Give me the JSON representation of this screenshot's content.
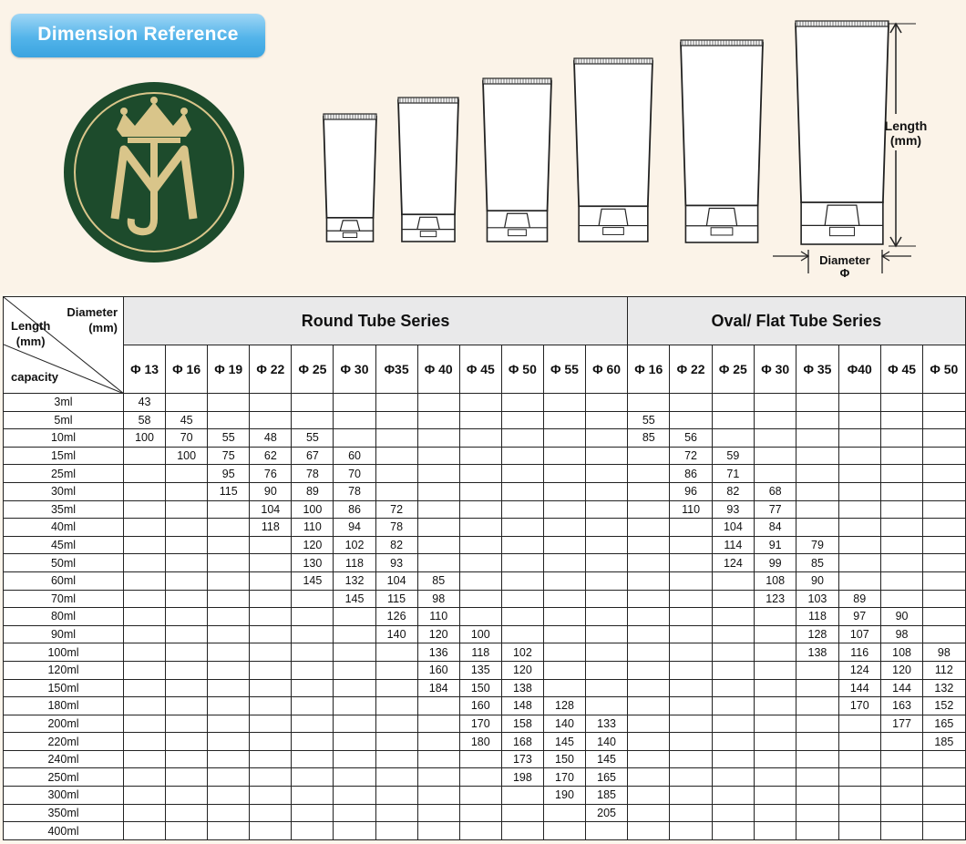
{
  "header": {
    "badge": "Dimension Reference",
    "length_label": [
      "Length",
      "(mm)"
    ],
    "diameter_label": [
      "Diameter",
      "Φ"
    ]
  },
  "colors": {
    "badge": "#4fb2e8",
    "logo_green": "#1d4b2c",
    "logo_gold": "#d9c58a",
    "series_header": "#e9e9ea"
  },
  "logo": {
    "monogram": "MJ"
  },
  "table": {
    "corner": {
      "diameter": [
        "Diameter",
        "(mm)"
      ],
      "length": [
        "Length",
        "(mm)"
      ],
      "capacity": "capacity"
    },
    "series": [
      {
        "name": "Round Tube Series",
        "cols": 12
      },
      {
        "name": "Oval/ Flat Tube Series",
        "cols": 8
      }
    ],
    "diameters": [
      "Φ 13",
      "Φ 16",
      "Φ 19",
      "Φ 22",
      "Φ 25",
      "Φ 30",
      "Φ35",
      "Φ 40",
      "Φ 45",
      "Φ 50",
      "Φ 55",
      "Φ 60",
      "Φ 16",
      "Φ 22",
      "Φ 25",
      "Φ 30",
      "Φ 35",
      "Φ40",
      "Φ 45",
      "Φ 50"
    ],
    "rows": [
      {
        "capacity": "3ml",
        "values": [
          "43",
          "",
          "",
          "",
          "",
          "",
          "",
          "",
          "",
          "",
          "",
          "",
          "",
          "",
          "",
          "",
          "",
          "",
          "",
          ""
        ]
      },
      {
        "capacity": "5ml",
        "values": [
          "58",
          "45",
          "",
          "",
          "",
          "",
          "",
          "",
          "",
          "",
          "",
          "",
          "55",
          "",
          "",
          "",
          "",
          "",
          "",
          ""
        ]
      },
      {
        "capacity": "10ml",
        "values": [
          "100",
          "70",
          "55",
          "48",
          "55",
          "",
          "",
          "",
          "",
          "",
          "",
          "",
          "85",
          "56",
          "",
          "",
          "",
          "",
          "",
          ""
        ]
      },
      {
        "capacity": "15ml",
        "values": [
          "",
          "100",
          "75",
          "62",
          "67",
          "60",
          "",
          "",
          "",
          "",
          "",
          "",
          "",
          "72",
          "59",
          "",
          "",
          "",
          "",
          ""
        ]
      },
      {
        "capacity": "25ml",
        "values": [
          "",
          "",
          "95",
          "76",
          "78",
          "70",
          "",
          "",
          "",
          "",
          "",
          "",
          "",
          "86",
          "71",
          "",
          "",
          "",
          "",
          ""
        ]
      },
      {
        "capacity": "30ml",
        "values": [
          "",
          "",
          "115",
          "90",
          "89",
          "78",
          "",
          "",
          "",
          "",
          "",
          "",
          "",
          "96",
          "82",
          "68",
          "",
          "",
          "",
          ""
        ]
      },
      {
        "capacity": "35ml",
        "values": [
          "",
          "",
          "",
          "104",
          "100",
          "86",
          "72",
          "",
          "",
          "",
          "",
          "",
          "",
          "110",
          "93",
          "77",
          "",
          "",
          "",
          ""
        ]
      },
      {
        "capacity": "40ml",
        "values": [
          "",
          "",
          "",
          "118",
          "110",
          "94",
          "78",
          "",
          "",
          "",
          "",
          "",
          "",
          "",
          "104",
          "84",
          "",
          "",
          "",
          ""
        ]
      },
      {
        "capacity": "45ml",
        "values": [
          "",
          "",
          "",
          "",
          "120",
          "102",
          "82",
          "",
          "",
          "",
          "",
          "",
          "",
          "",
          "114",
          "91",
          "79",
          "",
          "",
          ""
        ]
      },
      {
        "capacity": "50ml",
        "values": [
          "",
          "",
          "",
          "",
          "130",
          "118",
          "93",
          "",
          "",
          "",
          "",
          "",
          "",
          "",
          "124",
          "99",
          "85",
          "",
          "",
          ""
        ]
      },
      {
        "capacity": "60ml",
        "values": [
          "",
          "",
          "",
          "",
          "145",
          "132",
          "104",
          "85",
          "",
          "",
          "",
          "",
          "",
          "",
          "",
          "108",
          "90",
          "",
          "",
          ""
        ]
      },
      {
        "capacity": "70ml",
        "values": [
          "",
          "",
          "",
          "",
          "",
          "145",
          "115",
          "98",
          "",
          "",
          "",
          "",
          "",
          "",
          "",
          "123",
          "103",
          "89",
          "",
          ""
        ]
      },
      {
        "capacity": "80ml",
        "values": [
          "",
          "",
          "",
          "",
          "",
          "",
          "126",
          "110",
          "",
          "",
          "",
          "",
          "",
          "",
          "",
          "",
          "118",
          "97",
          "90",
          ""
        ]
      },
      {
        "capacity": "90ml",
        "values": [
          "",
          "",
          "",
          "",
          "",
          "",
          "140",
          "120",
          "100",
          "",
          "",
          "",
          "",
          "",
          "",
          "",
          "128",
          "107",
          "98",
          ""
        ]
      },
      {
        "capacity": "100ml",
        "values": [
          "",
          "",
          "",
          "",
          "",
          "",
          "",
          "136",
          "118",
          "102",
          "",
          "",
          "",
          "",
          "",
          "",
          "138",
          "116",
          "108",
          "98"
        ]
      },
      {
        "capacity": "120ml",
        "values": [
          "",
          "",
          "",
          "",
          "",
          "",
          "",
          "160",
          "135",
          "120",
          "",
          "",
          "",
          "",
          "",
          "",
          "",
          "124",
          "120",
          "112"
        ]
      },
      {
        "capacity": "150ml",
        "values": [
          "",
          "",
          "",
          "",
          "",
          "",
          "",
          "184",
          "150",
          "138",
          "",
          "",
          "",
          "",
          "",
          "",
          "",
          "144",
          "144",
          "132"
        ]
      },
      {
        "capacity": "180ml",
        "values": [
          "",
          "",
          "",
          "",
          "",
          "",
          "",
          "",
          "160",
          "148",
          "128",
          "",
          "",
          "",
          "",
          "",
          "",
          "170",
          "163",
          "152"
        ]
      },
      {
        "capacity": "200ml",
        "values": [
          "",
          "",
          "",
          "",
          "",
          "",
          "",
          "",
          "170",
          "158",
          "140",
          "133",
          "",
          "",
          "",
          "",
          "",
          "",
          "177",
          "165"
        ]
      },
      {
        "capacity": "220ml",
        "values": [
          "",
          "",
          "",
          "",
          "",
          "",
          "",
          "",
          "180",
          "168",
          "145",
          "140",
          "",
          "",
          "",
          "",
          "",
          "",
          "",
          "185"
        ]
      },
      {
        "capacity": "240ml",
        "values": [
          "",
          "",
          "",
          "",
          "",
          "",
          "",
          "",
          "",
          "173",
          "150",
          "145",
          "",
          "",
          "",
          "",
          "",
          "",
          "",
          ""
        ]
      },
      {
        "capacity": "250ml",
        "values": [
          "",
          "",
          "",
          "",
          "",
          "",
          "",
          "",
          "",
          "198",
          "170",
          "165",
          "",
          "",
          "",
          "",
          "",
          "",
          "",
          ""
        ]
      },
      {
        "capacity": "300ml",
        "values": [
          "",
          "",
          "",
          "",
          "",
          "",
          "",
          "",
          "",
          "",
          "190",
          "185",
          "",
          "",
          "",
          "",
          "",
          "",
          "",
          ""
        ]
      },
      {
        "capacity": "350ml",
        "values": [
          "",
          "",
          "",
          "",
          "",
          "",
          "",
          "",
          "",
          "",
          "",
          "205",
          "",
          "",
          "",
          "",
          "",
          "",
          "",
          ""
        ]
      },
      {
        "capacity": "400ml",
        "values": [
          "",
          "",
          "",
          "",
          "",
          "",
          "",
          "",
          "",
          "",
          "",
          "",
          "",
          "",
          "",
          "",
          "",
          "",
          "",
          ""
        ]
      }
    ]
  }
}
